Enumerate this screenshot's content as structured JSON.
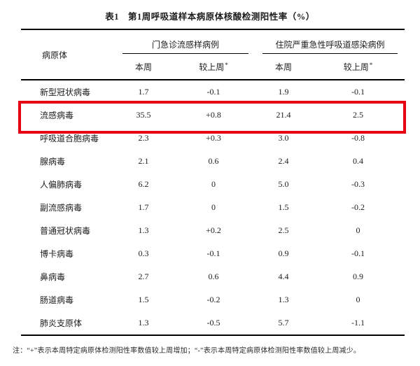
{
  "title": "表1　第1周呼吸道样本病原体核酸检测阳性率（%）",
  "table": {
    "row_header": "病原体",
    "asterisk": "*",
    "groups": [
      {
        "label": "门急诊流感样病例",
        "sub": [
          "本周",
          "较上周"
        ]
      },
      {
        "label": "住院严重急性呼吸道感染病例",
        "sub": [
          "本周",
          "较上周"
        ]
      }
    ],
    "rows": [
      {
        "name": "新型冠状病毒",
        "ili_week": "1.7",
        "ili_change": "-0.1",
        "sari_week": "1.9",
        "sari_change": "-0.1",
        "highlight": false
      },
      {
        "name": "流感病毒",
        "ili_week": "35.5",
        "ili_change": "+0.8",
        "sari_week": "21.4",
        "sari_change": "2.5",
        "highlight": true
      },
      {
        "name": "呼吸道合胞病毒",
        "ili_week": "2.3",
        "ili_change": "+0.3",
        "sari_week": "3.0",
        "sari_change": "-0.8",
        "highlight": false
      },
      {
        "name": "腺病毒",
        "ili_week": "2.1",
        "ili_change": "0.6",
        "sari_week": "2.4",
        "sari_change": "0.4",
        "highlight": false
      },
      {
        "name": "人偏肺病毒",
        "ili_week": "6.2",
        "ili_change": "0",
        "sari_week": "5.0",
        "sari_change": "-0.3",
        "highlight": false
      },
      {
        "name": "副流感病毒",
        "ili_week": "1.7",
        "ili_change": "0",
        "sari_week": "1.5",
        "sari_change": "-0.2",
        "highlight": false
      },
      {
        "name": "普通冠状病毒",
        "ili_week": "1.3",
        "ili_change": "+0.2",
        "sari_week": "2.5",
        "sari_change": "0",
        "highlight": false
      },
      {
        "name": "博卡病毒",
        "ili_week": "0.3",
        "ili_change": "-0.1",
        "sari_week": "0.9",
        "sari_change": "-0.1",
        "highlight": false
      },
      {
        "name": "鼻病毒",
        "ili_week": "2.7",
        "ili_change": "0.6",
        "sari_week": "4.4",
        "sari_change": "0.9",
        "highlight": false
      },
      {
        "name": "肠道病毒",
        "ili_week": "1.5",
        "ili_change": "-0.2",
        "sari_week": "1.3",
        "sari_change": "0",
        "highlight": false
      },
      {
        "name": "肺炎支原体",
        "ili_week": "1.3",
        "ili_change": "-0.5",
        "sari_week": "5.7",
        "sari_change": "-1.1",
        "highlight": false
      }
    ]
  },
  "footnote": "注：“+”表示本周特定病原体检测阳性率数值较上周增加；“-”表示本周特定病原体检测阳性率数值较上周减少。",
  "highlight_color": "#e60012"
}
